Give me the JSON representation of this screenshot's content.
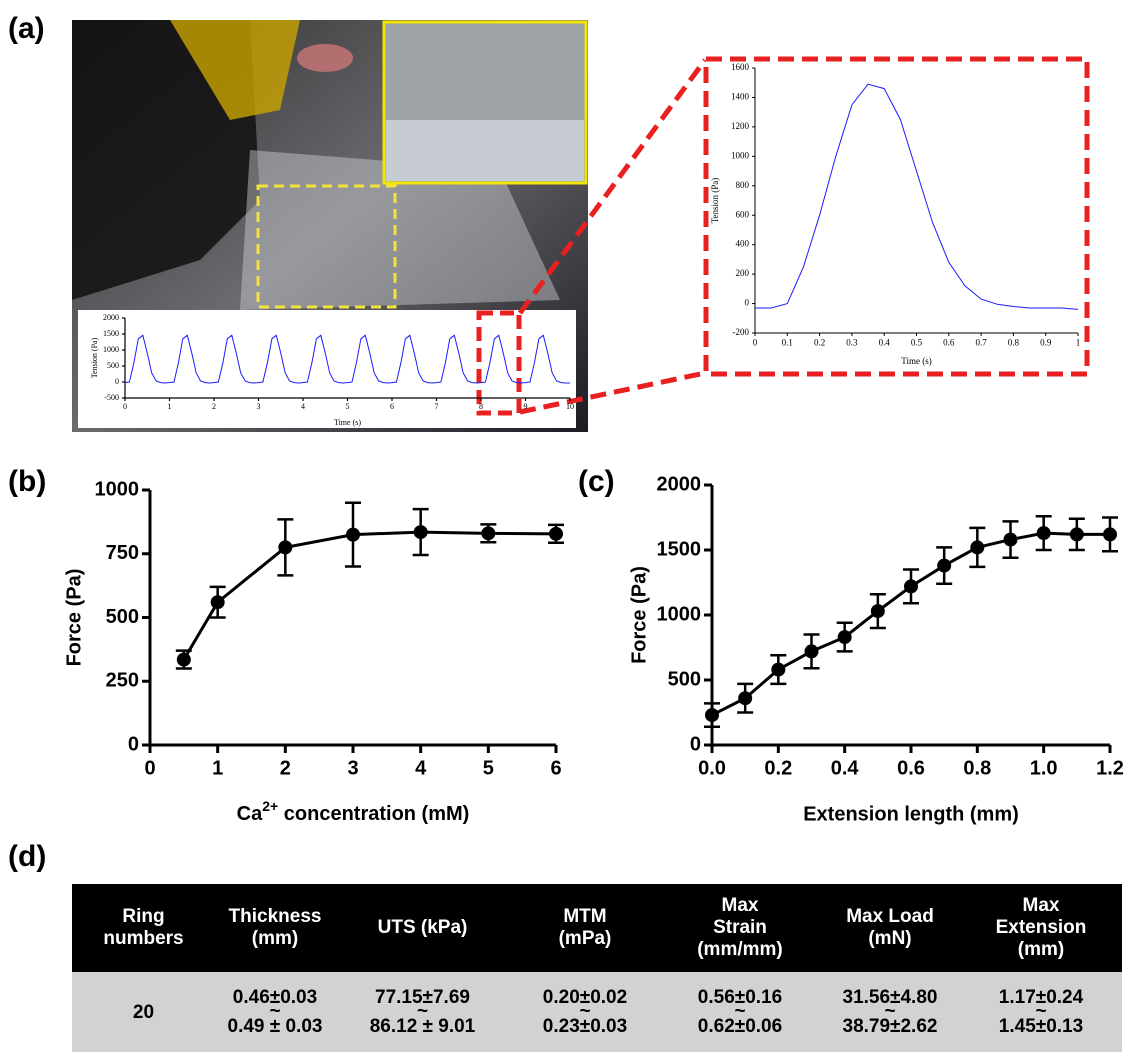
{
  "panels": [
    "(a)",
    "(b)",
    "(c)",
    "(d)"
  ],
  "chart_data": [
    {
      "type": "line",
      "y_label": "Tension (Pa)",
      "x_label": "Time (s)",
      "color": "#1a1aff",
      "xlim": [
        0,
        10
      ],
      "ylim": [
        -500,
        2000
      ],
      "xticks": [
        0,
        1,
        2,
        3,
        4,
        5,
        6,
        7,
        8,
        9,
        10
      ],
      "yticks": [
        -500,
        0,
        500,
        1000,
        1500,
        2000
      ],
      "x": [
        0,
        0.1,
        0.2,
        0.3,
        0.4,
        0.5,
        0.6,
        0.7,
        0.8,
        0.9,
        1,
        1.1,
        1.2,
        1.3,
        1.4,
        1.5,
        1.6,
        1.7,
        1.8,
        1.9,
        2,
        2.1,
        2.2,
        2.3,
        2.4,
        2.5,
        2.6,
        2.7,
        2.8,
        2.9,
        3,
        3.1,
        3.2,
        3.3,
        3.4,
        3.5,
        3.6,
        3.7,
        3.8,
        3.9,
        4,
        4.1,
        4.2,
        4.3,
        4.4,
        4.5,
        4.6,
        4.7,
        4.8,
        4.9,
        5,
        5.1,
        5.2,
        5.3,
        5.4,
        5.5,
        5.6,
        5.7,
        5.8,
        5.9,
        6,
        6.1,
        6.2,
        6.3,
        6.4,
        6.5,
        6.6,
        6.7,
        6.8,
        6.9,
        7,
        7.1,
        7.2,
        7.3,
        7.4,
        7.5,
        7.6,
        7.7,
        7.8,
        7.9,
        8,
        8.1,
        8.2,
        8.3,
        8.4,
        8.5,
        8.6,
        8.7,
        8.8,
        8.9,
        9,
        9.1,
        9.2,
        9.3,
        9.4,
        9.5,
        9.6,
        9.7,
        9.8,
        9.9,
        10
      ],
      "values": [
        -20,
        0,
        600,
        1350,
        1460,
        900,
        280,
        30,
        -20,
        -30,
        -20,
        0,
        600,
        1350,
        1460,
        900,
        280,
        30,
        -20,
        -30,
        -20,
        0,
        600,
        1350,
        1460,
        900,
        280,
        30,
        -20,
        -30,
        -20,
        0,
        600,
        1350,
        1460,
        900,
        280,
        30,
        -20,
        -30,
        -20,
        0,
        600,
        1350,
        1460,
        900,
        280,
        30,
        -20,
        -30,
        -20,
        0,
        600,
        1350,
        1460,
        900,
        280,
        30,
        -20,
        -30,
        -20,
        0,
        600,
        1350,
        1460,
        900,
        280,
        30,
        -20,
        -30,
        -20,
        0,
        600,
        1350,
        1460,
        900,
        280,
        30,
        -20,
        -30,
        -20,
        0,
        600,
        1350,
        1460,
        900,
        280,
        30,
        -20,
        -30,
        -20,
        0,
        600,
        1350,
        1460,
        900,
        280,
        30,
        -20,
        -30,
        -30
      ]
    },
    {
      "type": "line",
      "y_label": "Tension (Pa)",
      "x_label": "Time (s)",
      "color": "#1a1aff",
      "xlim": [
        0,
        1
      ],
      "ylim": [
        -200,
        1600
      ],
      "xticks": [
        0,
        0.1,
        0.2,
        0.3,
        0.4,
        0.5,
        0.6,
        0.7,
        0.8,
        0.9,
        1
      ],
      "yticks": [
        -200,
        0,
        200,
        400,
        600,
        800,
        1000,
        1200,
        1400,
        1600
      ],
      "x": [
        0,
        0.05,
        0.1,
        0.15,
        0.2,
        0.25,
        0.3,
        0.35,
        0.4,
        0.45,
        0.5,
        0.55,
        0.6,
        0.65,
        0.7,
        0.75,
        0.8,
        0.85,
        0.9,
        0.95,
        1
      ],
      "values": [
        -30,
        -30,
        0,
        250,
        600,
        1000,
        1350,
        1490,
        1460,
        1250,
        900,
        550,
        280,
        120,
        30,
        -5,
        -20,
        -30,
        -30,
        -30,
        -40
      ]
    },
    {
      "type": "errorbar",
      "y_label": "Force (Pa)",
      "x_label": [
        "Ca",
        "2+",
        " concentration (mM)"
      ],
      "color": "#000000",
      "xlim": [
        0,
        6
      ],
      "ylim": [
        0,
        1000
      ],
      "xticks": [
        0,
        1,
        2,
        3,
        4,
        5,
        6
      ],
      "yticks": [
        0,
        250,
        500,
        750,
        1000
      ],
      "x": [
        0.5,
        1,
        2,
        3,
        4,
        5,
        6
      ],
      "values": [
        335,
        560,
        775,
        825,
        835,
        830,
        828
      ],
      "errors": [
        35,
        60,
        110,
        125,
        90,
        35,
        35
      ]
    },
    {
      "type": "errorbar",
      "y_label": "Force (Pa)",
      "x_label": "Extension length (mm)",
      "color": "#000000",
      "xlim": [
        0,
        1.2
      ],
      "ylim": [
        0,
        2000
      ],
      "xticks": [
        {
          "value": 0,
          "label": "0.0"
        },
        0.2,
        0.4,
        0.6,
        0.8,
        {
          "value": 1,
          "label": "1.0"
        },
        1.2
      ],
      "yticks": [
        0,
        500,
        1000,
        1500,
        2000
      ],
      "x": [
        0,
        0.1,
        0.2,
        0.3,
        0.4,
        0.5,
        0.6,
        0.7,
        0.8,
        0.9,
        1,
        1.1,
        1.2
      ],
      "values": [
        230,
        360,
        580,
        720,
        830,
        1030,
        1220,
        1380,
        1520,
        1580,
        1630,
        1620,
        1620
      ],
      "errors": [
        90,
        110,
        110,
        130,
        110,
        130,
        130,
        140,
        150,
        140,
        130,
        120,
        130
      ]
    }
  ],
  "table": {
    "header": [
      [
        "Ring",
        "numbers"
      ],
      [
        "Thickness",
        "(mm)"
      ],
      [
        "UTS (kPa)"
      ],
      [
        "MTM",
        "(mPa)"
      ],
      [
        "Max",
        "Strain",
        "(mm/mm)"
      ],
      [
        "Max Load",
        "(mN)"
      ],
      [
        "Max",
        "Extension",
        "(mm)"
      ]
    ],
    "separator": "~",
    "rows": [
      [
        "20",
        [
          "0.46±0.03",
          "0.49 ± 0.03"
        ],
        [
          "77.15±7.69",
          "86.12 ± 9.01"
        ],
        [
          "0.20±0.02",
          "0.23±0.03"
        ],
        [
          "0.56±0.16",
          "0.62±0.06"
        ],
        [
          "31.56±4.80",
          "38.79±2.62"
        ],
        [
          "1.17±0.24",
          "1.45±0.13"
        ]
      ]
    ]
  }
}
